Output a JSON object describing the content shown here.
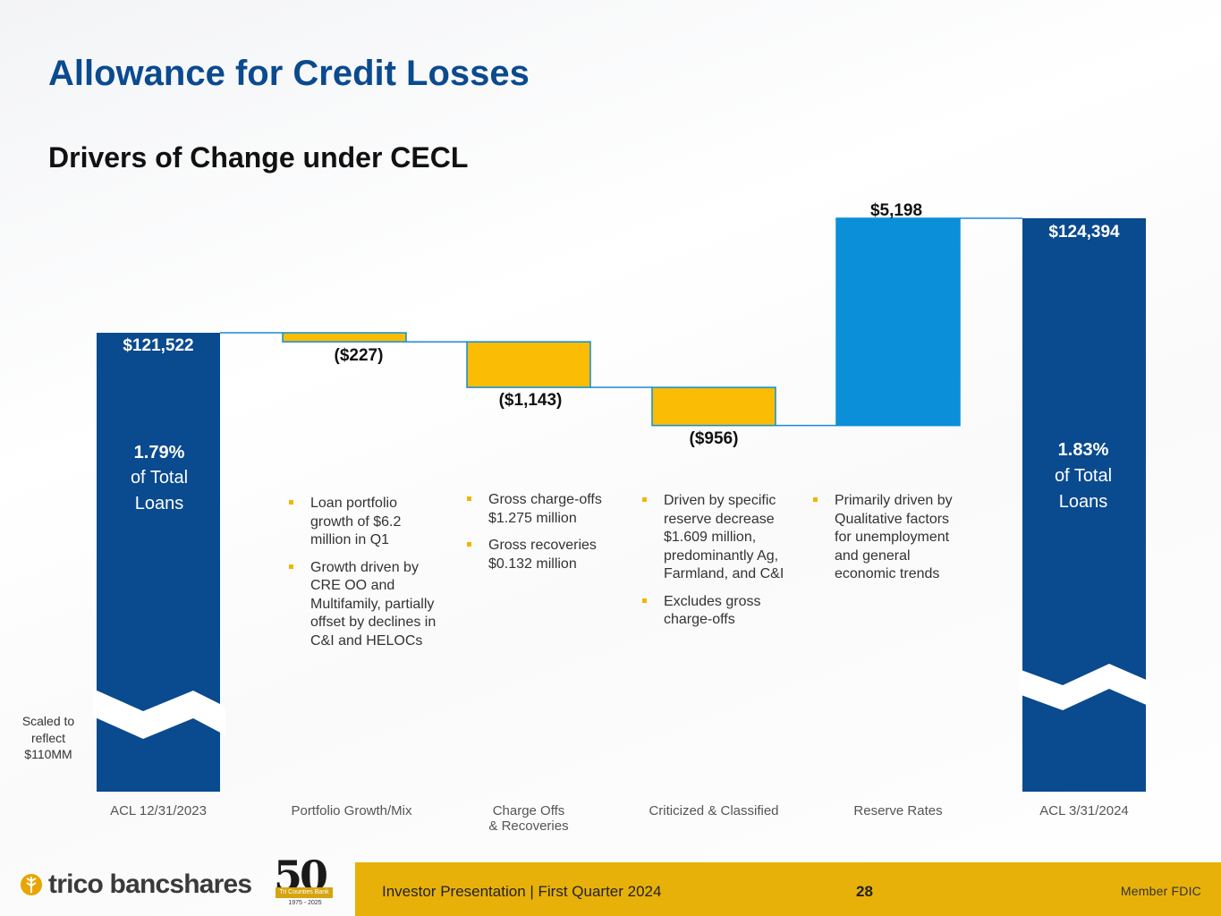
{
  "page": {
    "title": "Allowance for Credit Losses",
    "subtitle": "Drivers of Change under CECL"
  },
  "chart_data": {
    "type": "waterfall",
    "title": "Drivers of Change under CECL",
    "unit": "$ thousands",
    "categories": [
      "ACL  12/31/2023",
      "Portfolio Growth/Mix",
      "Charge Offs\n& Recoveries",
      "Criticized & Classified",
      "Reserve Rates",
      "ACL  3/31/2024"
    ],
    "values": [
      121522,
      -227,
      -1143,
      -956,
      5198,
      124394
    ],
    "value_labels": [
      "$121,522",
      "($227)",
      "($1,143)",
      "($956)",
      "$5,198",
      "$124,394"
    ],
    "kinds": [
      "total",
      "delta",
      "delta",
      "delta",
      "delta",
      "total"
    ],
    "axis_break_below": 110000,
    "colors": {
      "total": "#0a4a8f",
      "negative": "#fbbc05",
      "positive": "#0b8fd8"
    }
  },
  "bars": {
    "start_pct": "1.79%",
    "start_pct_label": "of Total",
    "start_pct_label2": "Loans",
    "end_pct": "1.83%",
    "end_pct_label": "of Total",
    "end_pct_label2": "Loans"
  },
  "notes": {
    "portfolio": [
      "Loan portfolio growth of $6.2 million in Q1",
      "Growth driven by CRE OO and Multifamily, partially offset by declines in C&I and HELOCs"
    ],
    "chargeoffs": [
      "Gross charge-offs $1.275 million",
      "Gross recoveries $0.132 million"
    ],
    "criticized": [
      "Driven by specific reserve decrease $1.609 million, predominantly Ag, Farmland, and C&I",
      "Excludes gross charge-offs"
    ],
    "reserve": [
      "Primarily driven by Qualitative factors for unemployment and general economic trends"
    ]
  },
  "scale_note": "Scaled to reflect $110MM",
  "footer": {
    "company": "trico bancshares",
    "anniversary": "50",
    "anniversary_banner": "Tri Counties Bank",
    "anniversary_years": "1975 - 2025",
    "presentation": "Investor Presentation  |  First Quarter 2024",
    "page_number": "28",
    "fdic": "Member FDIC"
  }
}
